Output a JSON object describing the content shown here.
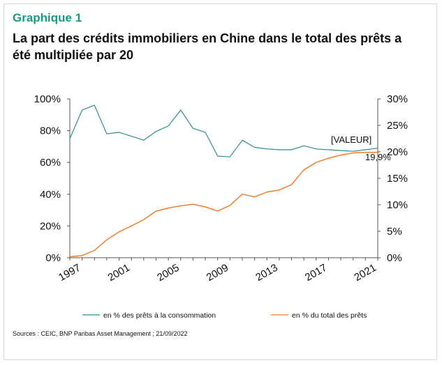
{
  "header": {
    "kicker": "Graphique 1",
    "title": "La part des crédits immobiliers en Chine dans le total des prêts a été multipliée par 20"
  },
  "footer": {
    "source": "Sources : CEIC, BNP Paribas Asset Management ; 21/09/2022"
  },
  "colors": {
    "teal": "#2a8f8f",
    "orange": "#f07f2e",
    "kicker": "#1a9a86"
  },
  "chart_data": {
    "type": "line",
    "x": [
      1997,
      1998,
      1999,
      2000,
      2001,
      2002,
      2003,
      2004,
      2005,
      2006,
      2007,
      2008,
      2009,
      2010,
      2011,
      2012,
      2013,
      2014,
      2015,
      2016,
      2017,
      2018,
      2019,
      2020,
      2021,
      2022
    ],
    "x_ticks": [
      "1997",
      "2001",
      "2005",
      "2009",
      "2013",
      "2017",
      "2021"
    ],
    "y_left_ticks": [
      "0%",
      "20%",
      "40%",
      "60%",
      "80%",
      "100%"
    ],
    "y_right_ticks": [
      "0%",
      "5%",
      "10%",
      "15%",
      "20%",
      "25%",
      "30%"
    ],
    "ylim_left": [
      0,
      100
    ],
    "ylim_right": [
      0,
      30
    ],
    "series": [
      {
        "name": "en % des prêts à la consommation",
        "axis": "left",
        "color": "#2a8f8f",
        "values": [
          75,
          93,
          96,
          78,
          79,
          76.5,
          74,
          79.5,
          83,
          93,
          81.5,
          79,
          64,
          63.5,
          74,
          69.5,
          68.5,
          68,
          68,
          70.5,
          68.5,
          68,
          67.5,
          67,
          68,
          69
        ]
      },
      {
        "name": "en % du total des prêts",
        "axis": "right",
        "color": "#f07f2e",
        "values": [
          0.2,
          0.4,
          1.4,
          3.4,
          4.9,
          6.0,
          7.2,
          8.8,
          9.4,
          9.8,
          10.1,
          9.6,
          8.8,
          9.9,
          12.0,
          11.5,
          12.4,
          12.8,
          13.8,
          16.6,
          18.0,
          18.8,
          19.4,
          19.8,
          19.9,
          19.9
        ]
      }
    ],
    "annotations": {
      "label_valeur": "[VALEUR]",
      "last_value": "19,9%"
    },
    "grid": false,
    "legend": "bottom"
  }
}
